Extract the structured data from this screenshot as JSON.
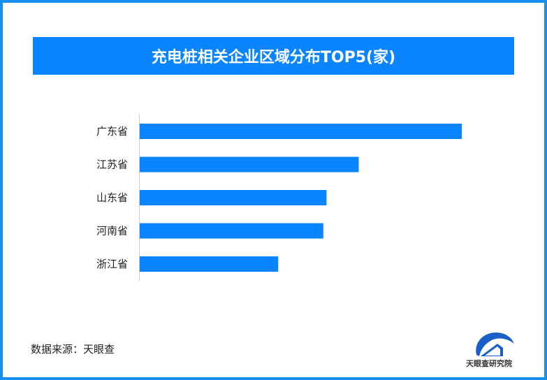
{
  "chart_data": {
    "type": "bar",
    "orientation": "horizontal",
    "title": "充电桩相关企业区域分布TOP5(家)",
    "categories": [
      "广东省",
      "江苏省",
      "山东省",
      "河南省",
      "浙江省"
    ],
    "values": [
      100,
      68,
      58,
      57,
      43
    ],
    "xlabel": "",
    "ylabel": "",
    "grid": false,
    "bar_color": "#0a84ff"
  },
  "source": "数据来源：天眼查",
  "logo_text": "天眼查研究院",
  "colors": {
    "border": "#1a8ff0",
    "title_bg": "#0a84ff"
  }
}
